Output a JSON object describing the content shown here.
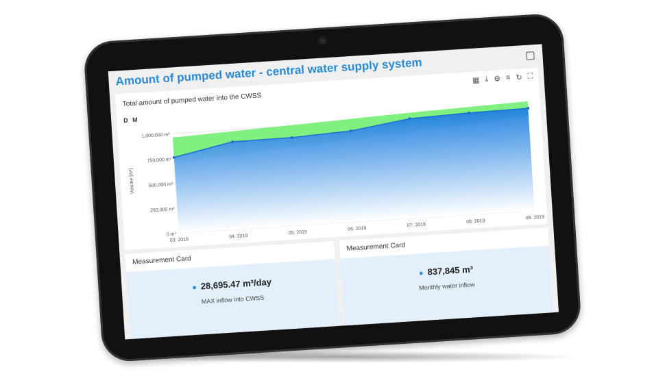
{
  "page": {
    "title": "Amount of pumped water - central water supply system",
    "title_icon": "report-icon"
  },
  "chart_card": {
    "title": "Total amount of pumped water into the CWSS",
    "toolbar": [
      {
        "name": "table-icon",
        "glyph": "▦"
      },
      {
        "name": "download-icon",
        "glyph": "⤓"
      },
      {
        "name": "gear-icon",
        "glyph": "⚙"
      },
      {
        "name": "filter-icon",
        "glyph": "≡"
      },
      {
        "name": "refresh-icon",
        "glyph": "↻"
      },
      {
        "name": "fullscreen-icon",
        "glyph": "⛶"
      }
    ],
    "period_buttons": [
      "D",
      "M"
    ]
  },
  "chart_data": {
    "type": "area",
    "ylabel": "Volume [m³]",
    "categories": [
      "03. 2019",
      "04. 2019",
      "05. 2019",
      "06. 2019",
      "07. 2019",
      "08. 2019",
      "09. 2019"
    ],
    "values": [
      760000,
      880000,
      885000,
      915000,
      1000000,
      1020000,
      1030000
    ],
    "band_low": [
      710000,
      750000,
      790000,
      830000,
      870000,
      910000,
      950000
    ],
    "band_high": [
      960000,
      985000,
      1010000,
      1035000,
      1060000,
      1080000,
      1100000
    ],
    "ylim": [
      0,
      1100000
    ],
    "yticks": [
      0,
      250000,
      500000,
      750000,
      1000000
    ],
    "ytick_labels": [
      "0 m³",
      "250,000 m³",
      "500,000 m³",
      "750,000 m³",
      "1,000,000 m³"
    ],
    "grid": true,
    "colors": {
      "area": "#1f7fe0",
      "band": "#80f080"
    }
  },
  "measurement_cards": [
    {
      "header": "Measurement Card",
      "value": "28,695.47 m³/day",
      "label": "MAX inflow into CWSS",
      "icon": "water-drop-icon"
    },
    {
      "header": "Measurement Card",
      "value": "837,845 m³",
      "label": "Monthly water inflow",
      "icon": "water-drop-icon"
    }
  ]
}
